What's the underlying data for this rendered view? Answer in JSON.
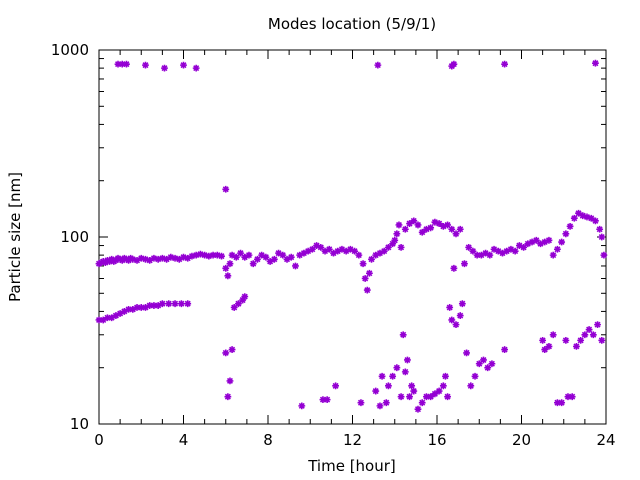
{
  "chart_data": {
    "type": "scatter",
    "title": "Modes location (5/9/1)",
    "xlabel": "Time [hour]",
    "ylabel": "Particle size [nm]",
    "xlim": [
      0,
      24
    ],
    "ylim": [
      10,
      1000
    ],
    "y_scale": "log",
    "grid": false,
    "legend": "none",
    "marker": "star",
    "color": "#9400d3",
    "x_ticks": [
      0,
      4,
      8,
      12,
      16,
      20,
      24
    ],
    "x_tick_labels": [
      "0",
      "4",
      "8",
      "12",
      "16",
      "20",
      "24"
    ],
    "y_ticks": [
      10,
      100,
      1000
    ],
    "y_tick_labels": [
      "10",
      "100",
      "1000"
    ],
    "series": [
      {
        "values": [
          [
            0.0,
            72
          ],
          [
            0.1,
            73
          ],
          [
            0.2,
            74
          ],
          [
            0.3,
            73
          ],
          [
            0.4,
            75
          ],
          [
            0.5,
            74
          ],
          [
            0.6,
            76
          ],
          [
            0.7,
            74
          ],
          [
            0.8,
            75
          ],
          [
            0.9,
            77
          ],
          [
            1.0,
            76
          ],
          [
            1.1,
            75
          ],
          [
            1.2,
            77
          ],
          [
            1.3,
            76
          ],
          [
            1.4,
            75
          ],
          [
            1.5,
            77
          ],
          [
            1.6,
            76
          ],
          [
            1.8,
            75
          ],
          [
            2.0,
            77
          ],
          [
            2.2,
            76
          ],
          [
            2.4,
            75
          ],
          [
            2.6,
            77
          ],
          [
            2.8,
            76
          ],
          [
            3.0,
            77
          ],
          [
            3.2,
            76
          ],
          [
            3.4,
            78
          ],
          [
            3.6,
            77
          ],
          [
            3.8,
            76
          ],
          [
            4.0,
            78
          ],
          [
            4.2,
            77
          ],
          [
            4.4,
            79
          ],
          [
            4.6,
            80
          ],
          [
            4.8,
            81
          ],
          [
            5.0,
            80
          ],
          [
            5.2,
            79
          ],
          [
            5.4,
            80
          ],
          [
            5.6,
            80
          ],
          [
            5.8,
            79
          ],
          [
            6.0,
            68
          ],
          [
            6.1,
            62
          ],
          [
            6.2,
            72
          ],
          [
            6.3,
            80
          ],
          [
            6.5,
            78
          ],
          [
            6.7,
            82
          ],
          [
            6.9,
            78
          ],
          [
            7.1,
            80
          ],
          [
            7.3,
            72
          ],
          [
            7.5,
            76
          ],
          [
            7.7,
            80
          ],
          [
            7.9,
            78
          ],
          [
            8.1,
            74
          ],
          [
            8.3,
            76
          ],
          [
            8.5,
            82
          ],
          [
            8.7,
            80
          ],
          [
            8.9,
            76
          ],
          [
            9.1,
            78
          ],
          [
            9.3,
            70
          ],
          [
            9.5,
            80
          ],
          [
            9.7,
            82
          ],
          [
            9.9,
            84
          ],
          [
            10.1,
            86
          ],
          [
            10.3,
            90
          ],
          [
            10.5,
            88
          ],
          [
            10.7,
            84
          ],
          [
            10.9,
            86
          ],
          [
            11.1,
            82
          ],
          [
            11.3,
            84
          ],
          [
            11.5,
            86
          ],
          [
            11.7,
            84
          ],
          [
            11.9,
            86
          ],
          [
            12.1,
            84
          ],
          [
            12.3,
            80
          ],
          [
            12.5,
            72
          ],
          [
            12.6,
            60
          ],
          [
            12.7,
            52
          ],
          [
            12.8,
            64
          ],
          [
            12.9,
            76
          ],
          [
            13.1,
            80
          ],
          [
            13.3,
            82
          ],
          [
            13.5,
            84
          ],
          [
            13.7,
            88
          ],
          [
            13.9,
            92
          ],
          [
            14.0,
            96
          ],
          [
            14.1,
            104
          ],
          [
            14.2,
            116
          ],
          [
            14.3,
            88
          ],
          [
            14.5,
            110
          ],
          [
            14.7,
            118
          ],
          [
            14.9,
            122
          ],
          [
            15.1,
            116
          ],
          [
            15.3,
            106
          ],
          [
            15.5,
            110
          ],
          [
            15.7,
            112
          ],
          [
            15.9,
            120
          ],
          [
            16.1,
            118
          ],
          [
            16.3,
            114
          ],
          [
            16.5,
            116
          ],
          [
            16.7,
            110
          ],
          [
            16.8,
            68
          ],
          [
            16.9,
            104
          ],
          [
            17.1,
            110
          ],
          [
            17.3,
            72
          ],
          [
            17.5,
            88
          ],
          [
            17.7,
            84
          ],
          [
            17.9,
            80
          ],
          [
            18.1,
            80
          ],
          [
            18.3,
            82
          ],
          [
            18.5,
            80
          ],
          [
            18.7,
            86
          ],
          [
            18.9,
            84
          ],
          [
            19.1,
            82
          ],
          [
            19.3,
            84
          ],
          [
            19.5,
            86
          ],
          [
            19.7,
            84
          ],
          [
            19.9,
            90
          ],
          [
            20.1,
            88
          ],
          [
            20.3,
            92
          ],
          [
            20.5,
            94
          ],
          [
            20.7,
            96
          ],
          [
            20.9,
            92
          ],
          [
            21.1,
            94
          ],
          [
            21.3,
            96
          ],
          [
            21.5,
            80
          ],
          [
            21.7,
            86
          ],
          [
            21.9,
            94
          ],
          [
            22.1,
            104
          ],
          [
            22.3,
            114
          ],
          [
            22.5,
            126
          ],
          [
            22.7,
            134
          ],
          [
            22.9,
            130
          ],
          [
            23.1,
            128
          ],
          [
            23.3,
            126
          ],
          [
            23.5,
            122
          ],
          [
            23.7,
            110
          ],
          [
            23.8,
            100
          ],
          [
            23.9,
            80
          ],
          [
            0.0,
            36
          ],
          [
            0.2,
            36
          ],
          [
            0.4,
            37
          ],
          [
            0.6,
            37
          ],
          [
            0.8,
            38
          ],
          [
            1.0,
            39
          ],
          [
            1.2,
            40
          ],
          [
            1.4,
            41
          ],
          [
            1.6,
            41
          ],
          [
            1.8,
            42
          ],
          [
            2.0,
            42
          ],
          [
            2.2,
            42
          ],
          [
            2.4,
            43
          ],
          [
            2.6,
            43
          ],
          [
            2.8,
            43
          ],
          [
            3.0,
            44
          ],
          [
            3.3,
            44
          ],
          [
            3.6,
            44
          ],
          [
            3.9,
            44
          ],
          [
            4.2,
            44
          ],
          [
            6.0,
            24
          ],
          [
            6.1,
            14
          ],
          [
            6.2,
            17
          ],
          [
            6.3,
            25
          ],
          [
            6.4,
            42
          ],
          [
            6.6,
            44
          ],
          [
            6.8,
            46
          ],
          [
            6.9,
            48
          ],
          [
            9.6,
            12.5
          ],
          [
            10.6,
            13.5
          ],
          [
            10.8,
            13.5
          ],
          [
            11.2,
            16
          ],
          [
            12.4,
            13
          ],
          [
            13.1,
            15
          ],
          [
            13.3,
            12.5
          ],
          [
            13.4,
            18
          ],
          [
            13.6,
            13
          ],
          [
            13.7,
            16
          ],
          [
            13.9,
            18
          ],
          [
            14.1,
            20
          ],
          [
            14.3,
            14
          ],
          [
            14.4,
            30
          ],
          [
            14.5,
            19
          ],
          [
            14.6,
            22
          ],
          [
            14.7,
            14
          ],
          [
            14.8,
            16
          ],
          [
            14.9,
            15
          ],
          [
            15.1,
            12
          ],
          [
            15.3,
            13
          ],
          [
            15.5,
            14
          ],
          [
            15.7,
            14
          ],
          [
            15.9,
            14.5
          ],
          [
            16.1,
            15
          ],
          [
            16.3,
            16
          ],
          [
            16.4,
            18
          ],
          [
            16.5,
            14
          ],
          [
            16.6,
            42
          ],
          [
            16.7,
            36
          ],
          [
            16.9,
            34
          ],
          [
            17.1,
            38
          ],
          [
            17.2,
            44
          ],
          [
            17.4,
            24
          ],
          [
            17.6,
            16
          ],
          [
            17.8,
            18
          ],
          [
            18.0,
            21
          ],
          [
            18.2,
            22
          ],
          [
            18.4,
            20
          ],
          [
            18.6,
            21
          ],
          [
            19.2,
            25
          ],
          [
            21.0,
            28
          ],
          [
            21.1,
            25
          ],
          [
            21.3,
            26
          ],
          [
            21.5,
            30
          ],
          [
            21.7,
            13
          ],
          [
            21.9,
            13
          ],
          [
            22.1,
            28
          ],
          [
            22.2,
            14
          ],
          [
            22.4,
            14
          ],
          [
            22.6,
            26
          ],
          [
            22.8,
            28
          ],
          [
            23.0,
            30
          ],
          [
            23.2,
            32
          ],
          [
            23.4,
            30
          ],
          [
            23.6,
            34
          ],
          [
            23.8,
            28
          ],
          [
            0.9,
            840
          ],
          [
            1.1,
            840
          ],
          [
            1.3,
            840
          ],
          [
            2.2,
            830
          ],
          [
            3.1,
            800
          ],
          [
            4.0,
            830
          ],
          [
            4.6,
            800
          ],
          [
            6.0,
            180
          ],
          [
            13.2,
            830
          ],
          [
            16.7,
            820
          ],
          [
            16.8,
            840
          ],
          [
            19.2,
            840
          ],
          [
            23.5,
            850
          ]
        ]
      }
    ]
  }
}
